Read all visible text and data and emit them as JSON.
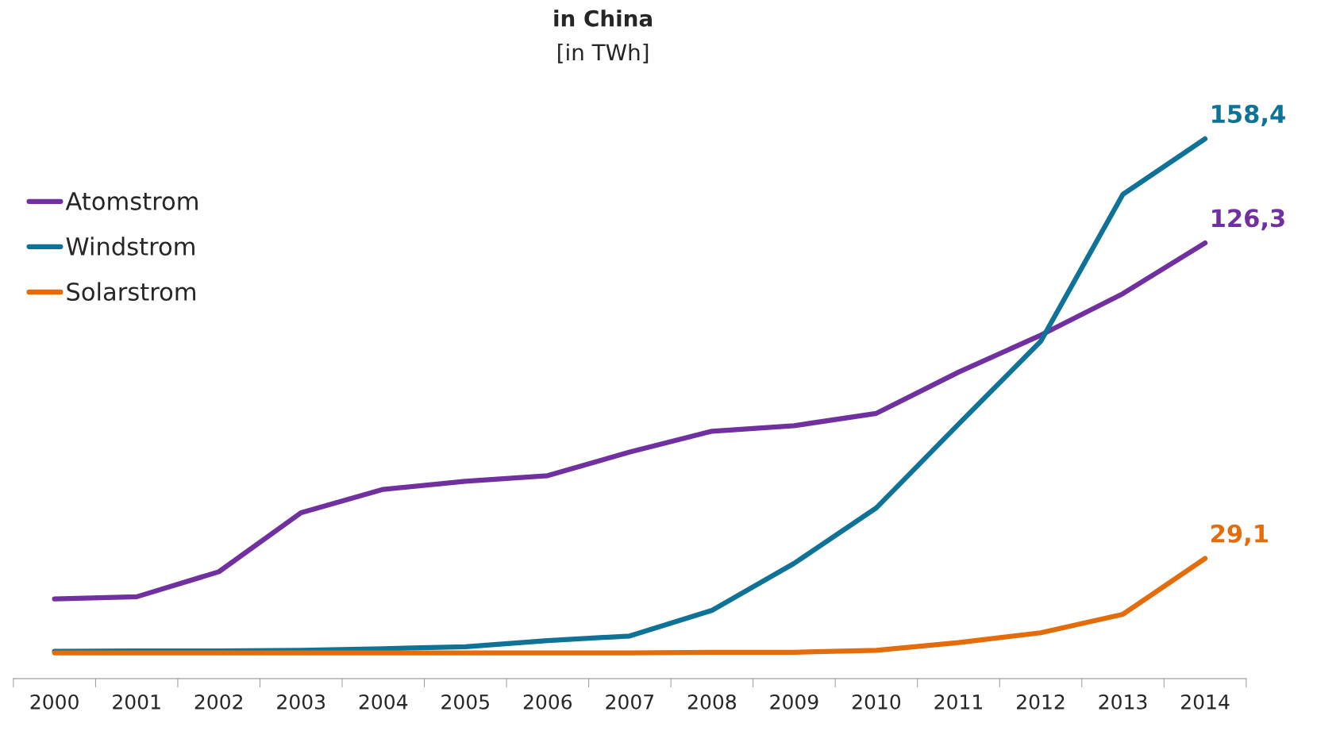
{
  "chart_data": {
    "type": "line",
    "title": "in China",
    "subtitle": "[in TWh]",
    "tick_labels": "x",
    "legend": "top left",
    "grid": false,
    "marker": "none",
    "line_style": "solid",
    "categories": [
      "2000",
      "2001",
      "2002",
      "2003",
      "2004",
      "2005",
      "2006",
      "2007",
      "2008",
      "2009",
      "2010",
      "2011",
      "2012",
      "2013",
      "2014"
    ],
    "series": [
      {
        "name": "Atomstrom",
        "color": "#7030a0",
        "values": [
          16.6,
          17.3,
          25.0,
          43.2,
          50.4,
          52.9,
          54.6,
          61.9,
          68.3,
          70.0,
          73.8,
          86.5,
          97.9,
          110.7,
          126.3
        ],
        "value_labels": [
          null,
          null,
          null,
          null,
          null,
          null,
          null,
          null,
          null,
          null,
          null,
          null,
          null,
          null,
          "126,3"
        ]
      },
      {
        "name": "Windstrom",
        "color": "#0e7396",
        "values": [
          0.5,
          0.6,
          0.6,
          0.8,
          1.3,
          1.9,
          3.8,
          5.2,
          13.1,
          27.6,
          44.7,
          70.5,
          96.0,
          141.3,
          158.4
        ],
        "value_labels": [
          null,
          null,
          null,
          null,
          null,
          null,
          null,
          null,
          null,
          null,
          null,
          null,
          null,
          null,
          "158,4"
        ]
      },
      {
        "name": "Solarstrom",
        "color": "#e46c0a",
        "values": [
          0,
          0,
          0,
          0,
          0,
          0,
          0,
          0,
          0.2,
          0.2,
          0.8,
          3.2,
          6.2,
          11.9,
          29.1
        ],
        "value_labels": [
          null,
          null,
          null,
          null,
          null,
          null,
          null,
          null,
          null,
          null,
          null,
          null,
          null,
          null,
          "29,1"
        ]
      }
    ]
  }
}
